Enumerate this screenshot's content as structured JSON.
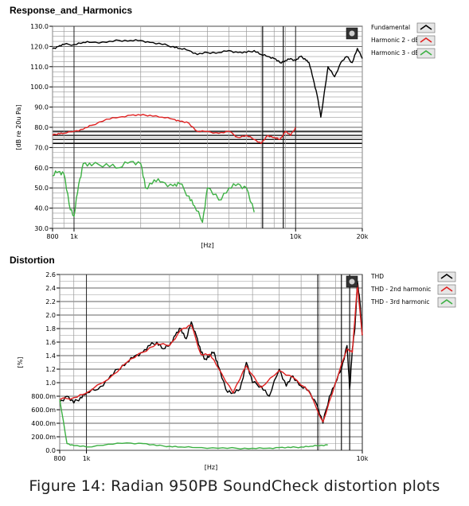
{
  "figure": {
    "caption": "Figure 14: Radian 950PB SoundCheck distortion plots"
  },
  "colors": {
    "fundamental": "#000000",
    "harmonic2": "#e02020",
    "harmonic3": "#3cb043",
    "gridMajor": "#000000",
    "gridMinor": "#9a9a9a"
  },
  "chart_data": [
    {
      "type": "line",
      "title": "Response_and_Harmonics",
      "xlabel": "[Hz]",
      "ylabel": "[dB re 20u Pa]",
      "x_scale": "log",
      "xlim": [
        800,
        20000
      ],
      "ylim": [
        30,
        130
      ],
      "x_ticks": [
        {
          "value": 800,
          "label": "800"
        },
        {
          "value": 1000,
          "label": "1k"
        },
        {
          "value": 10000,
          "label": "10k"
        },
        {
          "value": 20000,
          "label": "20k"
        }
      ],
      "y_ticks": [
        {
          "value": 30,
          "label": "30.0"
        },
        {
          "value": 40,
          "label": "40.0"
        },
        {
          "value": 50,
          "label": "50.0"
        },
        {
          "value": 60,
          "label": "60.0"
        },
        {
          "value": 70,
          "label": "70.0"
        },
        {
          "value": 80,
          "label": "80.0"
        },
        {
          "value": 90,
          "label": "90.0"
        },
        {
          "value": 100,
          "label": "100.0"
        },
        {
          "value": 110,
          "label": "110.0"
        },
        {
          "value": 120,
          "label": "120.0"
        },
        {
          "value": 130,
          "label": "130.0"
        }
      ],
      "grid": true,
      "legend_position": "top-right",
      "series": [
        {
          "name": "Fundamental",
          "color": "#000000",
          "x": [
            800,
            850,
            900,
            1000,
            1100,
            1200,
            1400,
            1600,
            1800,
            2000,
            2200,
            2500,
            2800,
            3000,
            3300,
            3600,
            4000,
            4500,
            5000,
            5500,
            6000,
            6500,
            7000,
            7500,
            8000,
            8500,
            9000,
            9500,
            10000,
            10500,
            11000,
            11500,
            12000,
            12500,
            13000,
            14000,
            15000,
            16000,
            17000,
            18000,
            19000,
            20000
          ],
          "y": [
            119,
            120,
            121,
            121,
            122,
            122,
            122,
            123,
            123,
            123,
            122,
            121,
            120,
            119,
            118,
            116,
            117,
            117,
            118,
            117,
            117,
            118,
            116,
            115,
            114,
            112,
            113,
            114,
            113,
            115,
            114,
            112,
            104,
            96,
            85,
            110,
            105,
            112,
            115,
            112,
            119,
            114
          ]
        },
        {
          "name": "Harmonic 2 - dBSPL",
          "color": "#e02020",
          "x": [
            800,
            850,
            900,
            1000,
            1100,
            1200,
            1400,
            1600,
            1800,
            2000,
            2200,
            2500,
            2800,
            3000,
            3300,
            3600,
            4000,
            4500,
            5000,
            5500,
            6000,
            6500,
            7000,
            7500,
            8000,
            8500,
            9000,
            9500,
            10000
          ],
          "y": [
            76,
            77,
            77,
            78,
            79,
            81,
            84,
            85,
            86,
            86,
            86,
            85,
            84,
            83,
            82,
            78,
            78,
            77,
            78,
            75,
            76,
            74,
            72,
            76,
            75,
            74,
            78,
            76,
            80
          ]
        },
        {
          "name": "Harmonic 3 - dBSPL",
          "color": "#3cb043",
          "x": [
            800,
            850,
            900,
            950,
            1000,
            1050,
            1100,
            1200,
            1400,
            1600,
            1800,
            2000,
            2100,
            2300,
            2500,
            2800,
            3000,
            3300,
            3500,
            3800,
            4000,
            4500,
            5000,
            5500,
            6000,
            6500
          ],
          "y": [
            56,
            58,
            57,
            42,
            36,
            52,
            62,
            61,
            62,
            60,
            63,
            62,
            50,
            54,
            53,
            51,
            52,
            46,
            41,
            33,
            50,
            44,
            50,
            52,
            50,
            38
          ]
        }
      ]
    },
    {
      "type": "line",
      "title": "Distortion",
      "xlabel": "[Hz]",
      "ylabel": "[%]",
      "x_scale": "log",
      "xlim": [
        800,
        10000
      ],
      "ylim": [
        0,
        2.6
      ],
      "x_ticks": [
        {
          "value": 800,
          "label": "800"
        },
        {
          "value": 1000,
          "label": "1k"
        },
        {
          "value": 10000,
          "label": "10k"
        }
      ],
      "y_ticks": [
        {
          "value": 0,
          "label": "0.0"
        },
        {
          "value": 0.2,
          "label": "200.0m"
        },
        {
          "value": 0.4,
          "label": "400.0m"
        },
        {
          "value": 0.6,
          "label": "600.0m"
        },
        {
          "value": 0.8,
          "label": "800.0m"
        },
        {
          "value": 1.0,
          "label": "1.0"
        },
        {
          "value": 1.2,
          "label": "1.2"
        },
        {
          "value": 1.4,
          "label": "1.4"
        },
        {
          "value": 1.6,
          "label": "1.6"
        },
        {
          "value": 1.8,
          "label": "1.8"
        },
        {
          "value": 2.0,
          "label": "2.0"
        },
        {
          "value": 2.2,
          "label": "2.2"
        },
        {
          "value": 2.4,
          "label": "2.4"
        },
        {
          "value": 2.6,
          "label": "2.6"
        }
      ],
      "grid": true,
      "legend_position": "top-right",
      "series": [
        {
          "name": "THD",
          "color": "#000000",
          "x": [
            800,
            850,
            900,
            950,
            1000,
            1100,
            1200,
            1300,
            1400,
            1500,
            1600,
            1700,
            1800,
            1900,
            2000,
            2100,
            2200,
            2300,
            2400,
            2500,
            2600,
            2700,
            2800,
            2900,
            3000,
            3200,
            3400,
            3600,
            3800,
            4000,
            4300,
            4600,
            5000,
            5300,
            5600,
            6000,
            6400,
            6800,
            7200,
            7600,
            8000,
            8400,
            8800,
            9000,
            9200,
            9400,
            9600,
            9800,
            10000
          ],
          "y": [
            0.72,
            0.8,
            0.7,
            0.78,
            0.85,
            0.9,
            1.05,
            1.2,
            1.3,
            1.4,
            1.45,
            1.55,
            1.6,
            1.5,
            1.55,
            1.7,
            1.8,
            1.65,
            1.9,
            1.7,
            1.45,
            1.35,
            1.4,
            1.45,
            1.25,
            0.9,
            0.85,
            0.9,
            1.3,
            1.0,
            0.95,
            0.8,
            1.2,
            0.95,
            1.1,
            0.95,
            0.88,
            0.7,
            0.4,
            0.8,
            1.0,
            1.2,
            1.55,
            0.9,
            1.5,
            1.8,
            2.5,
            2.2,
            1.7
          ]
        },
        {
          "name": "THD - 2nd harmonic",
          "color": "#e02020",
          "x": [
            800,
            900,
            1000,
            1200,
            1400,
            1600,
            1800,
            2000,
            2200,
            2400,
            2600,
            2800,
            3000,
            3400,
            3800,
            4300,
            5000,
            5600,
            6400,
            7200,
            8000,
            8800,
            9200,
            9600,
            10000
          ],
          "y": [
            0.75,
            0.78,
            0.85,
            1.05,
            1.3,
            1.45,
            1.58,
            1.55,
            1.78,
            1.85,
            1.42,
            1.42,
            1.22,
            0.85,
            1.25,
            0.93,
            1.18,
            1.08,
            0.87,
            0.42,
            1.0,
            1.5,
            1.45,
            2.45,
            1.7
          ]
        },
        {
          "name": "THD - 3rd harmonic",
          "color": "#3cb043",
          "x": [
            800,
            850,
            900,
            1000,
            1200,
            1400,
            1600,
            1800,
            2000,
            2200,
            2500,
            3000,
            3500,
            4000,
            4500,
            5000,
            5500,
            6000,
            6500,
            7000,
            7500
          ],
          "y": [
            0.75,
            0.1,
            0.07,
            0.05,
            0.09,
            0.11,
            0.1,
            0.07,
            0.06,
            0.05,
            0.04,
            0.03,
            0.03,
            0.03,
            0.03,
            0.04,
            0.04,
            0.05,
            0.06,
            0.07,
            0.08
          ]
        }
      ]
    }
  ]
}
